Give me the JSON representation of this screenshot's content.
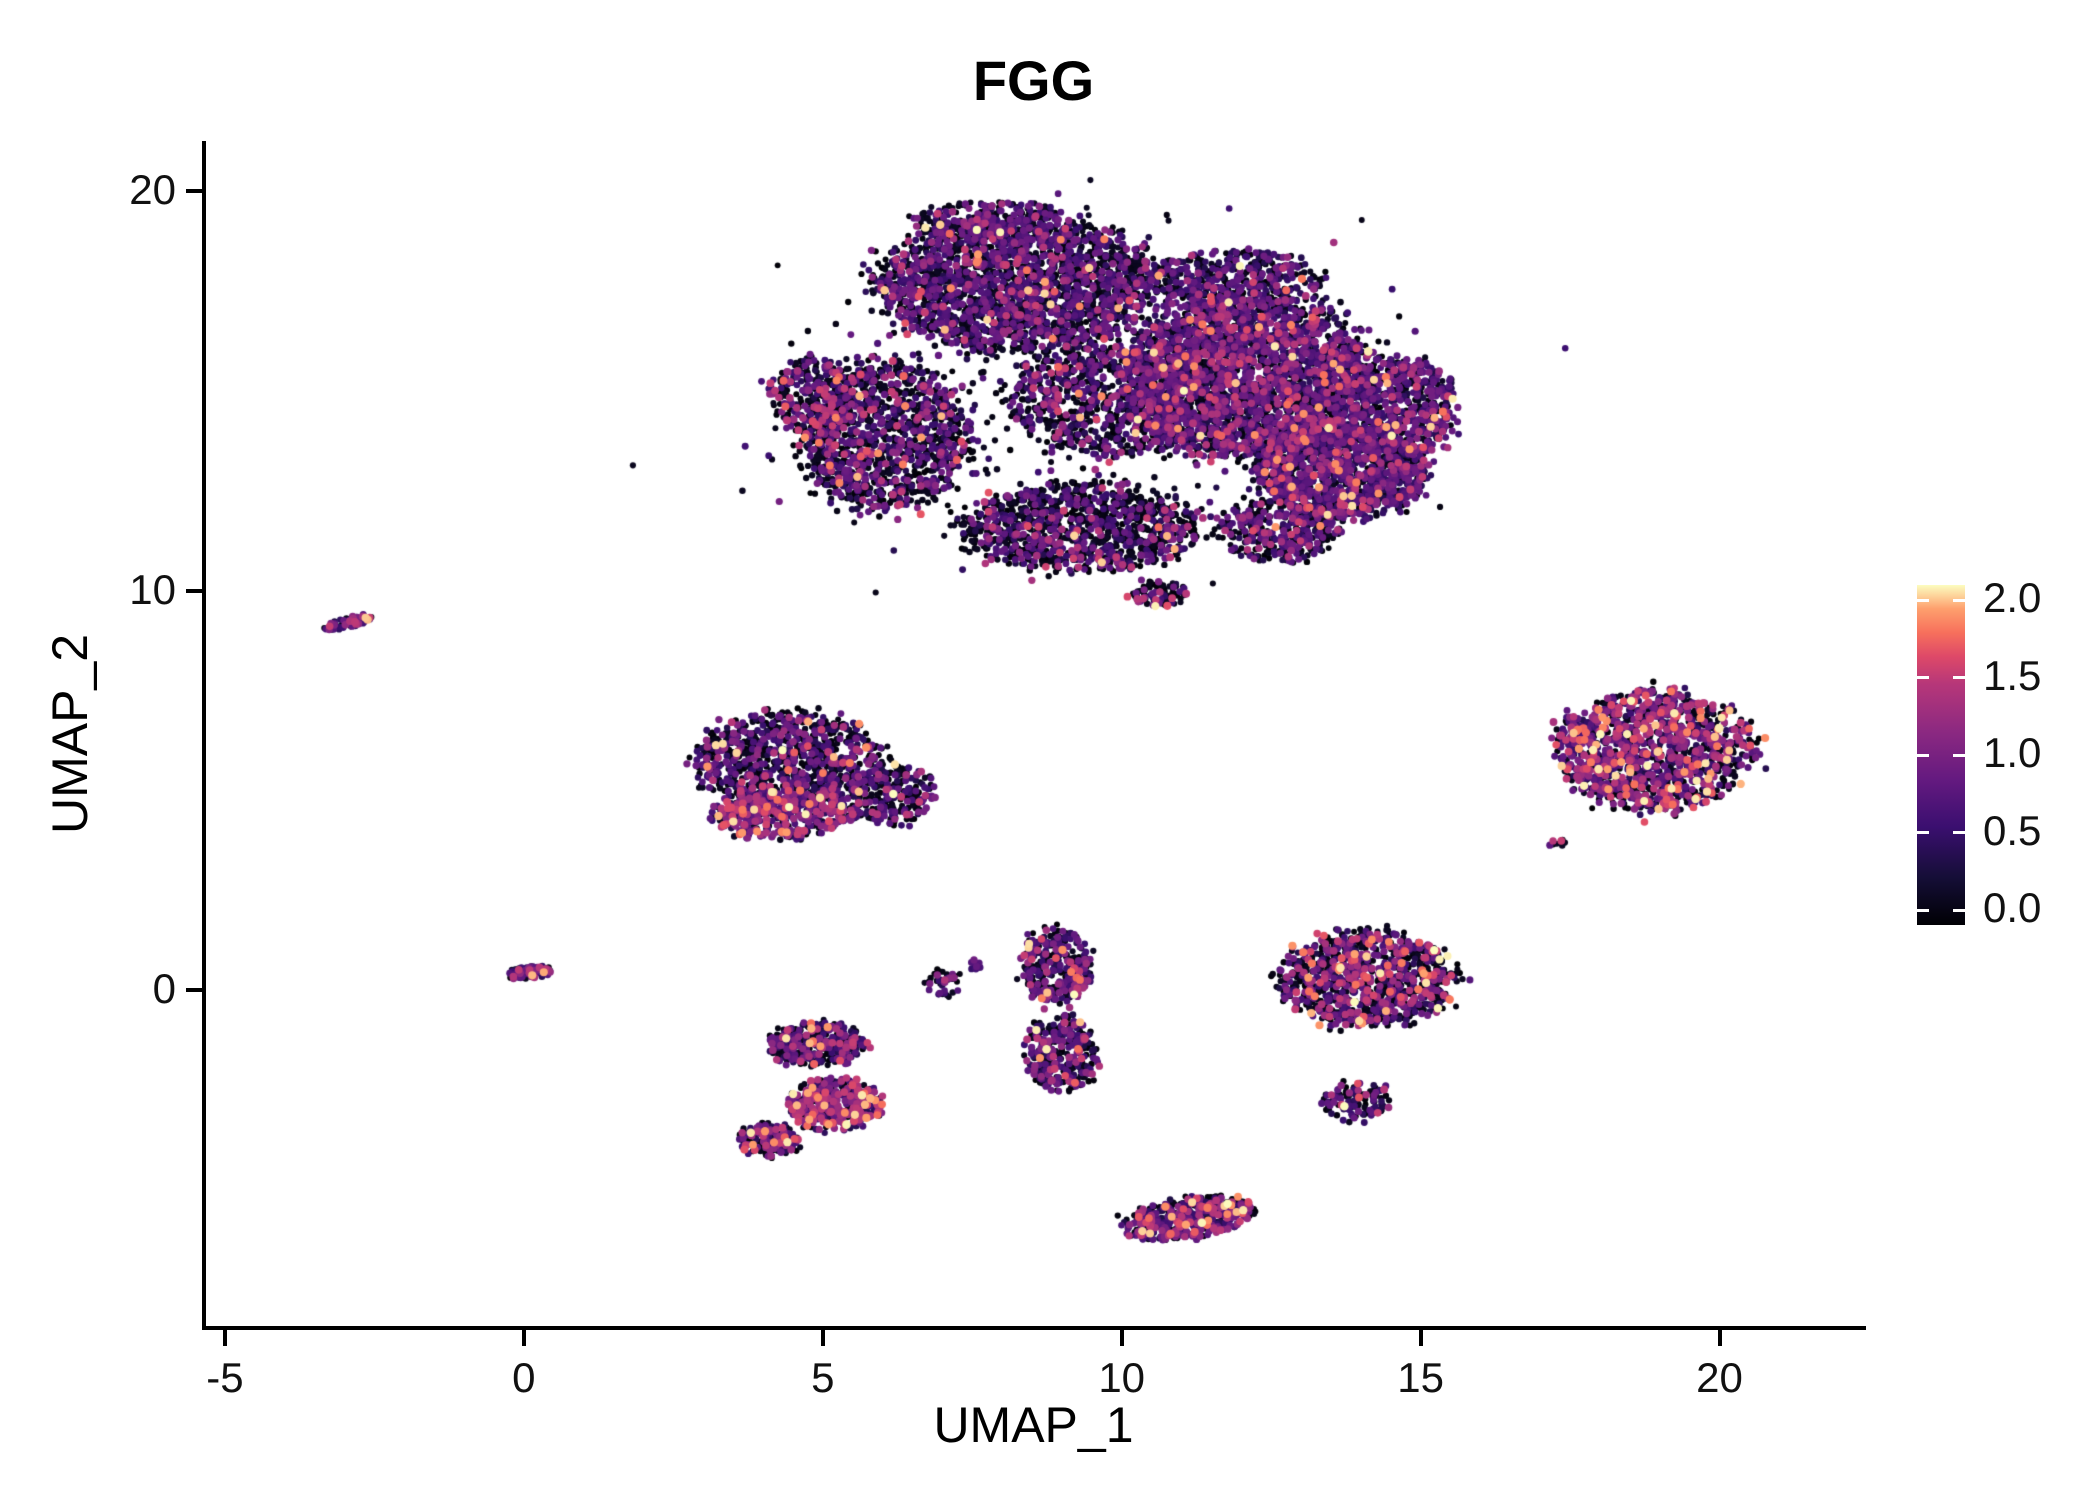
{
  "chart_data": {
    "type": "scatter",
    "title": "FGG",
    "xlabel": "UMAP_1",
    "ylabel": "UMAP_2",
    "xlim": [
      -5.35,
      22.4
    ],
    "ylim": [
      -8.4,
      21.2
    ],
    "xticks": [
      -5,
      0,
      5,
      10,
      15,
      20
    ],
    "xtick_labels": [
      "-5",
      "0",
      "5",
      "10",
      "15",
      "20"
    ],
    "yticks": [
      0,
      10,
      20
    ],
    "ytick_labels": [
      "0",
      "10",
      "20"
    ],
    "grid": false,
    "legend_position": "right",
    "colorbar": {
      "range": [
        0,
        2
      ],
      "ticks": [
        0,
        0.5,
        1,
        1.5,
        2
      ],
      "tick_labels": [
        "0.0",
        "0.5",
        "1.0",
        "1.5",
        "2.0"
      ]
    },
    "colormap": {
      "name": "magma",
      "stops": [
        [
          0,
          "#000004"
        ],
        [
          0.14,
          "#150e37"
        ],
        [
          0.29,
          "#3b0f70"
        ],
        [
          0.43,
          "#651a80"
        ],
        [
          0.57,
          "#8c2981"
        ],
        [
          0.71,
          "#b73779"
        ],
        [
          0.79,
          "#de4968"
        ],
        [
          0.86,
          "#f7705c"
        ],
        [
          0.93,
          "#fe9f6d"
        ],
        [
          1,
          "#fcfdbf"
        ]
      ]
    },
    "expression_bins": [
      [
        0,
        0.18
      ],
      [
        0.35,
        0.95
      ],
      [
        0.95,
        1.5
      ],
      [
        1.5,
        2.0
      ]
    ],
    "clusters": [
      {
        "name": "main-blob-upper-left",
        "cx": 8.2,
        "cy": 17.7,
        "sx": 2.3,
        "sy": 1.7,
        "n": 2300,
        "dist": "disk",
        "w": [
          0.52,
          0.4,
          0.07,
          0.01
        ]
      },
      {
        "name": "main-blob-top-cap",
        "cx": 7.8,
        "cy": 19.2,
        "sx": 1.3,
        "sy": 0.55,
        "n": 240,
        "dist": "disk",
        "w": [
          0.55,
          0.38,
          0.06,
          0.01
        ]
      },
      {
        "name": "main-blob-right-core",
        "cx": 12.1,
        "cy": 15.3,
        "sx": 2.1,
        "sy": 2.0,
        "n": 2900,
        "dist": "disk",
        "w": [
          0.36,
          0.51,
          0.11,
          0.02
        ]
      },
      {
        "name": "main-blob-top-right",
        "cx": 11.8,
        "cy": 17.7,
        "sx": 1.5,
        "sy": 0.8,
        "n": 520,
        "dist": "disk",
        "w": [
          0.46,
          0.44,
          0.09,
          0.01
        ]
      },
      {
        "name": "main-blob-lower-right",
        "cx": 13.7,
        "cy": 13.0,
        "sx": 1.4,
        "sy": 1.2,
        "n": 1250,
        "dist": "disk",
        "w": [
          0.38,
          0.49,
          0.11,
          0.02
        ]
      },
      {
        "name": "main-blob-right-edge",
        "cx": 14.7,
        "cy": 14.6,
        "sx": 0.9,
        "sy": 1.2,
        "n": 520,
        "dist": "disk",
        "w": [
          0.38,
          0.48,
          0.12,
          0.02
        ]
      },
      {
        "name": "main-blob-left-lobe",
        "cx": 6.0,
        "cy": 13.9,
        "sx": 1.4,
        "sy": 1.9,
        "n": 1250,
        "dist": "disk",
        "w": [
          0.55,
          0.33,
          0.1,
          0.02
        ]
      },
      {
        "name": "main-blob-left-edge",
        "cx": 4.8,
        "cy": 14.9,
        "sx": 0.7,
        "sy": 0.9,
        "n": 220,
        "dist": "disk",
        "w": [
          0.48,
          0.34,
          0.14,
          0.04
        ]
      },
      {
        "name": "main-blob-bottom",
        "cx": 9.3,
        "cy": 11.6,
        "sx": 2.0,
        "sy": 1.1,
        "n": 1150,
        "dist": "disk",
        "w": [
          0.62,
          0.3,
          0.07,
          0.01
        ]
      },
      {
        "name": "main-blob-bottom-right-lobe",
        "cx": 12.6,
        "cy": 11.5,
        "sx": 1.0,
        "sy": 0.75,
        "n": 360,
        "dist": "disk",
        "w": [
          0.5,
          0.4,
          0.09,
          0.01
        ]
      },
      {
        "name": "main-blob-center-fill",
        "cx": 9.8,
        "cy": 14.8,
        "sx": 1.7,
        "sy": 1.4,
        "n": 850,
        "dist": "disk",
        "w": [
          0.56,
          0.37,
          0.06,
          0.01
        ]
      },
      {
        "name": "main-blob-bottom-tail",
        "cx": 10.6,
        "cy": 9.9,
        "sx": 0.5,
        "sy": 0.35,
        "n": 80,
        "dist": "disk",
        "w": [
          0.55,
          0.35,
          0.09,
          0.01
        ]
      },
      {
        "name": "main-blob-diffuse-scatter",
        "cx": 9.6,
        "cy": 15.0,
        "sx": 5.5,
        "sy": 4.0,
        "n": 350,
        "dist": "gauss",
        "w": [
          0.7,
          0.26,
          0.035,
          0.005
        ]
      },
      {
        "name": "tiny-cluster-far-left",
        "cx": -2.95,
        "cy": 9.2,
        "sx": 0.45,
        "sy": 0.12,
        "rot": 0.35,
        "n": 70,
        "dist": "disk",
        "w": [
          0.25,
          0.45,
          0.25,
          0.05
        ]
      },
      {
        "name": "mid-left-cluster-core",
        "cx": 4.4,
        "cy": 5.8,
        "sx": 1.5,
        "sy": 1.15,
        "n": 950,
        "dist": "disk",
        "w": [
          0.55,
          0.35,
          0.08,
          0.02
        ]
      },
      {
        "name": "mid-left-cluster-pink-bottom",
        "cx": 4.3,
        "cy": 4.4,
        "sx": 1.15,
        "sy": 0.6,
        "n": 480,
        "dist": "disk",
        "w": [
          0.28,
          0.4,
          0.26,
          0.06
        ]
      },
      {
        "name": "mid-left-cluster-east",
        "cx": 6.1,
        "cy": 4.9,
        "sx": 0.75,
        "sy": 0.75,
        "n": 260,
        "dist": "disk",
        "w": [
          0.6,
          0.3,
          0.08,
          0.02
        ]
      },
      {
        "name": "right-cluster",
        "cx": 18.9,
        "cy": 6.0,
        "sx": 1.6,
        "sy": 1.5,
        "n": 1250,
        "dist": "disk",
        "w": [
          0.37,
          0.31,
          0.23,
          0.09
        ]
      },
      {
        "name": "right-cluster-outlier",
        "cx": 17.3,
        "cy": 3.7,
        "sx": 0.2,
        "sy": 0.15,
        "n": 8,
        "dist": "gauss",
        "w": [
          0.5,
          0.3,
          0.15,
          0.05
        ]
      },
      {
        "name": "tiny-cluster-origin",
        "cx": 0.1,
        "cy": 0.45,
        "sx": 0.38,
        "sy": 0.16,
        "rot": 0.2,
        "n": 90,
        "dist": "disk",
        "w": [
          0.3,
          0.5,
          0.15,
          0.05
        ]
      },
      {
        "name": "lower-left-upper-lump",
        "cx": 4.9,
        "cy": -1.35,
        "sx": 0.85,
        "sy": 0.55,
        "n": 380,
        "dist": "disk",
        "w": [
          0.5,
          0.37,
          0.11,
          0.02
        ]
      },
      {
        "name": "lower-left-lower-lump",
        "cx": 5.2,
        "cy": -2.85,
        "sx": 0.8,
        "sy": 0.65,
        "n": 430,
        "dist": "disk",
        "w": [
          0.33,
          0.33,
          0.26,
          0.08
        ]
      },
      {
        "name": "lower-left-small-lump",
        "cx": 4.1,
        "cy": -3.75,
        "sx": 0.5,
        "sy": 0.4,
        "n": 170,
        "dist": "disk",
        "w": [
          0.38,
          0.34,
          0.21,
          0.07
        ]
      },
      {
        "name": "tiny-fragments-center",
        "cx": 7.0,
        "cy": 0.15,
        "sx": 0.3,
        "sy": 0.35,
        "n": 45,
        "dist": "disk",
        "w": [
          0.5,
          0.35,
          0.12,
          0.03
        ]
      },
      {
        "name": "tiny-fragments-center-2",
        "cx": 7.55,
        "cy": 0.6,
        "sx": 0.12,
        "sy": 0.15,
        "n": 10,
        "dist": "gauss",
        "w": [
          0.5,
          0.4,
          0.08,
          0.02
        ]
      },
      {
        "name": "vertical-cluster-upper",
        "cx": 8.9,
        "cy": 0.6,
        "sx": 0.6,
        "sy": 0.95,
        "n": 320,
        "dist": "disk",
        "w": [
          0.45,
          0.4,
          0.13,
          0.02
        ]
      },
      {
        "name": "vertical-cluster-lower",
        "cx": 9.0,
        "cy": -1.6,
        "sx": 0.6,
        "sy": 0.95,
        "n": 320,
        "dist": "disk",
        "w": [
          0.45,
          0.4,
          0.13,
          0.02
        ]
      },
      {
        "name": "lower-right-cluster",
        "cx": 14.1,
        "cy": 0.3,
        "sx": 1.45,
        "sy": 1.2,
        "n": 1000,
        "dist": "disk",
        "w": [
          0.52,
          0.27,
          0.16,
          0.05
        ]
      },
      {
        "name": "lower-right-tail",
        "cx": 13.9,
        "cy": -2.8,
        "sx": 0.6,
        "sy": 0.5,
        "n": 130,
        "dist": "disk",
        "w": [
          0.45,
          0.38,
          0.14,
          0.03
        ]
      },
      {
        "name": "bottom-cluster",
        "cx": 11.1,
        "cy": -5.7,
        "sx": 1.1,
        "sy": 0.5,
        "rot": 0.25,
        "n": 520,
        "dist": "disk",
        "w": [
          0.4,
          0.37,
          0.18,
          0.05
        ]
      }
    ]
  }
}
